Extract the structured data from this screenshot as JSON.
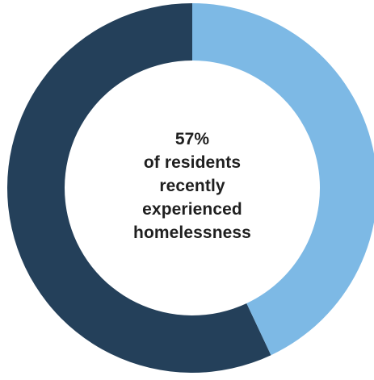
{
  "chart_data": {
    "type": "pie",
    "variant": "donut",
    "slices": [
      {
        "label": "",
        "value": 57,
        "color": "#24405a"
      },
      {
        "label": "",
        "value": 43,
        "color": "#7db9e5"
      }
    ],
    "center_text": {
      "value": "57%",
      "line1": "of residents",
      "line2": "recently",
      "line3": "experienced",
      "line4": "homelessness"
    },
    "legend": "none"
  }
}
